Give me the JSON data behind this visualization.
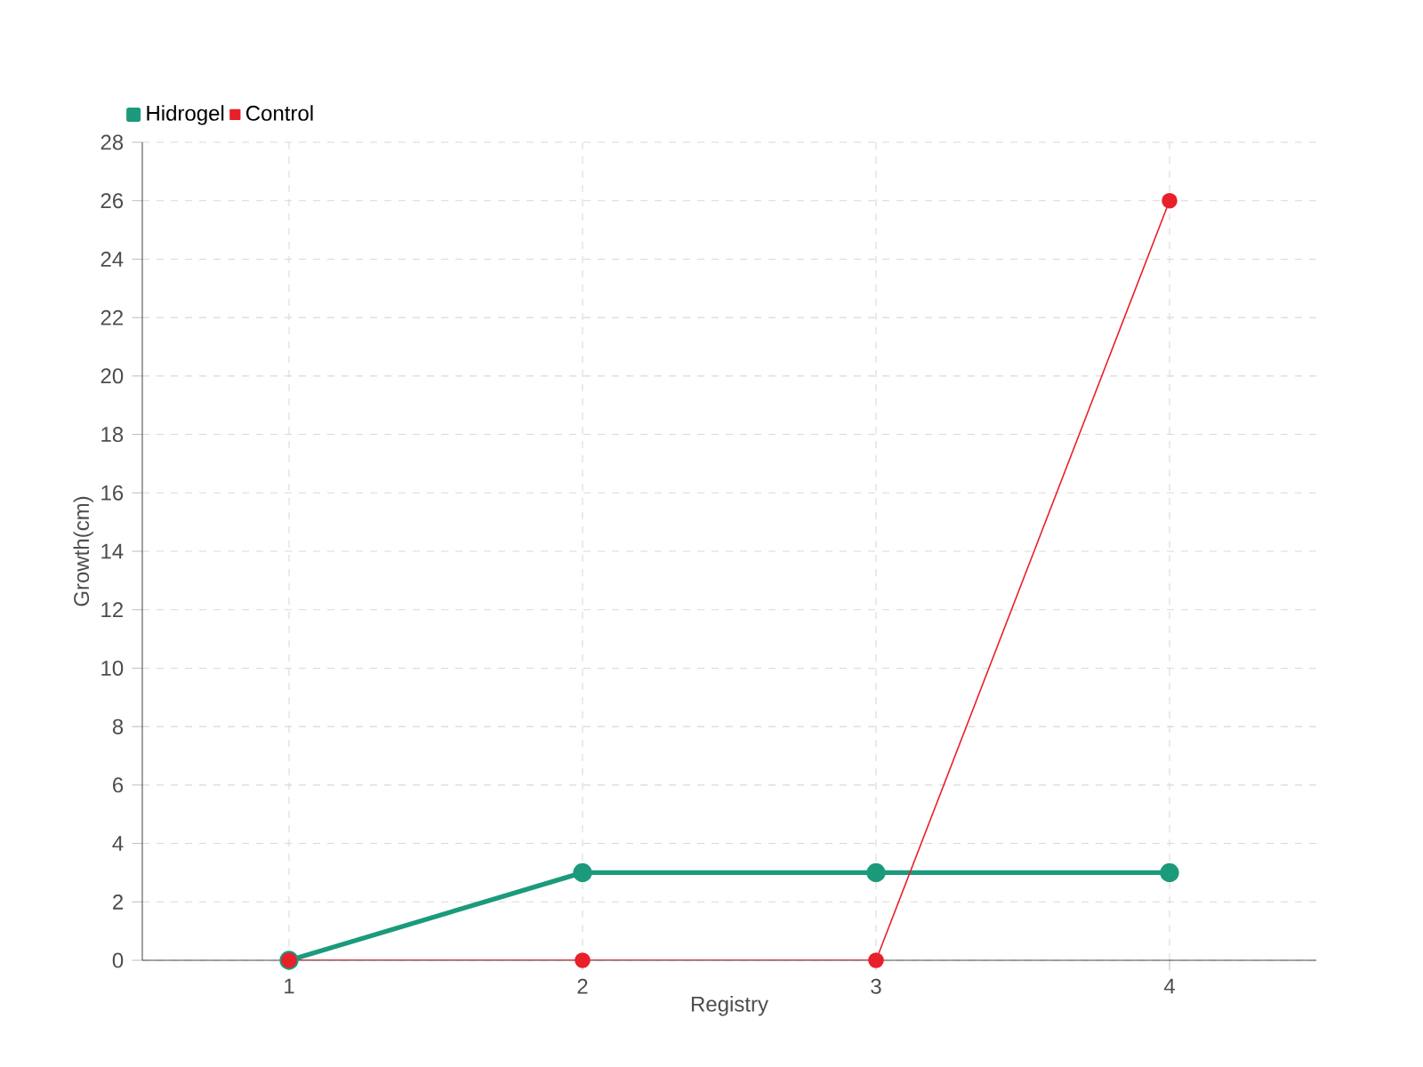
{
  "chart_data": {
    "type": "line",
    "xlabel": "Registry",
    "ylabel": "Growth(cm)",
    "x": [
      1,
      2,
      3,
      4
    ],
    "series": [
      {
        "name": "Hidrogel",
        "color": "#1b9a7c",
        "values": [
          0,
          3,
          3,
          3
        ]
      },
      {
        "name": "Control",
        "color": "#e8202a",
        "values": [
          0,
          0,
          0,
          26
        ]
      }
    ],
    "xlim": [
      0.5,
      4.5
    ],
    "xticks": [
      1,
      2,
      3,
      4
    ],
    "ylim": [
      0,
      28
    ],
    "yticks": [
      0,
      2,
      4,
      6,
      8,
      10,
      12,
      14,
      16,
      18,
      20,
      22,
      24,
      26,
      28
    ],
    "grid": true,
    "legend": "top left",
    "marker": "circle",
    "line_style": "solid"
  }
}
